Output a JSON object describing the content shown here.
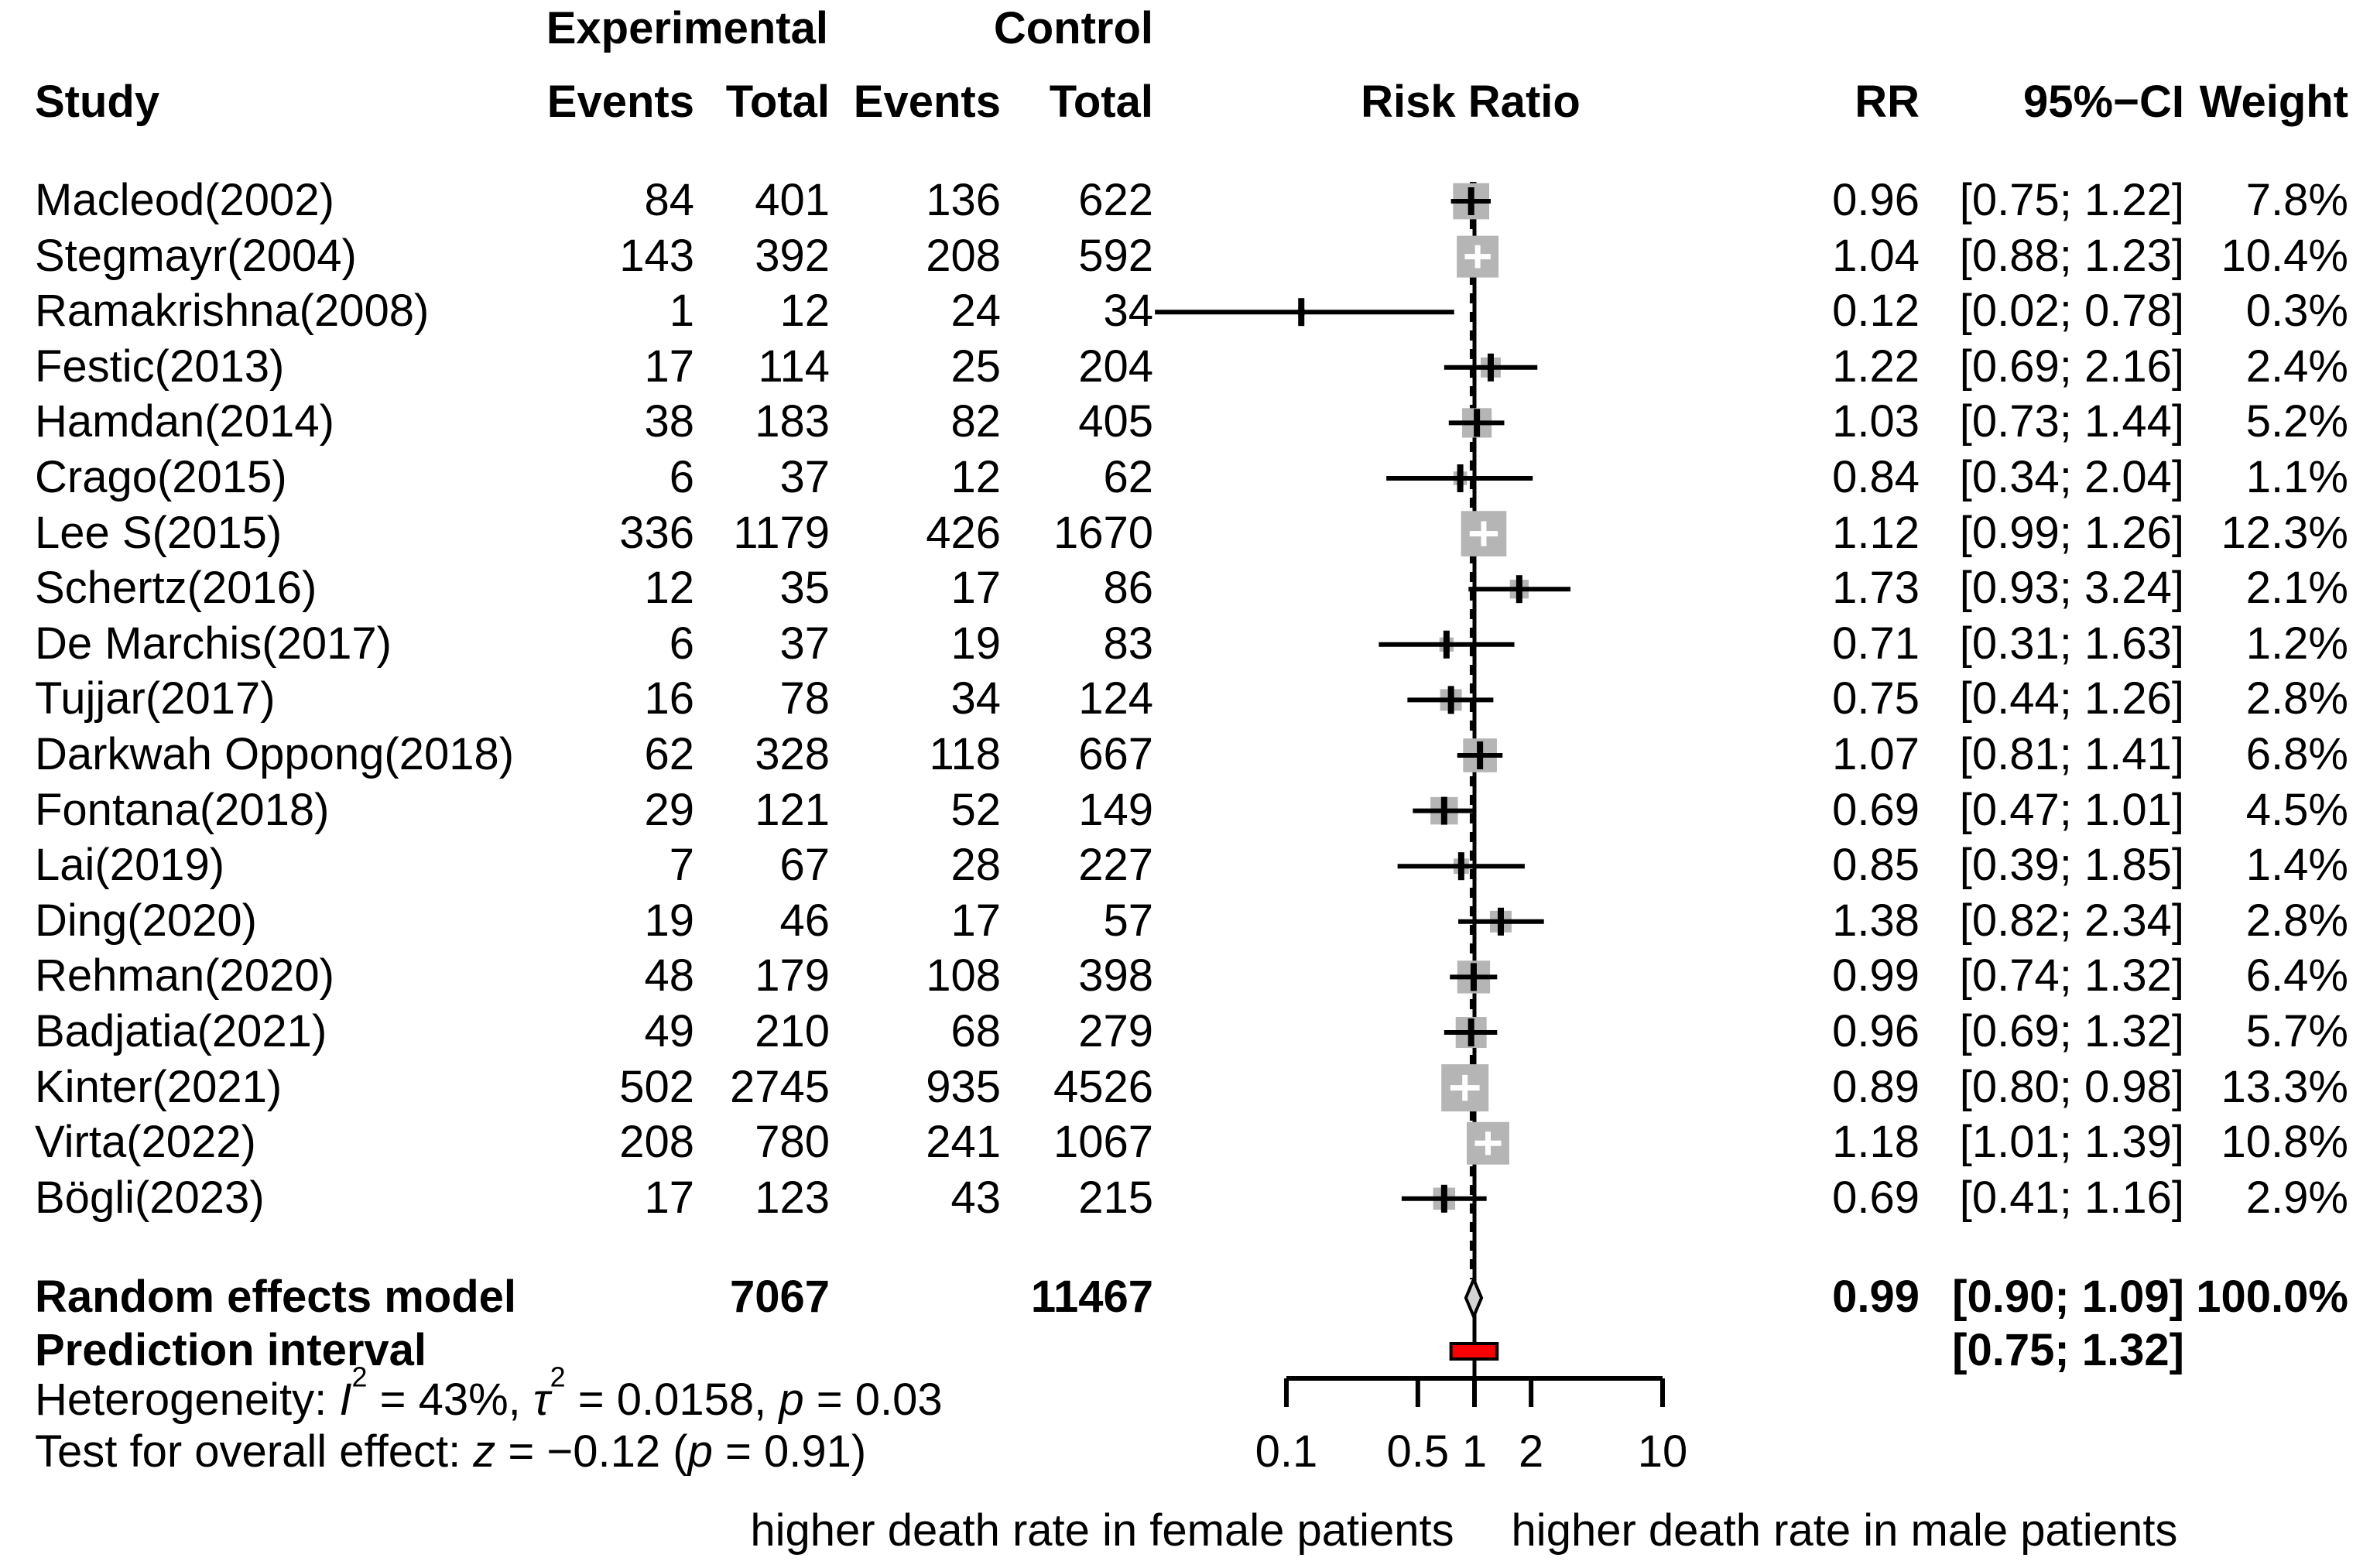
{
  "header": {
    "experimental": "Experimental",
    "control": "Control",
    "study": "Study",
    "events": "Events",
    "total": "Total",
    "events2": "Events",
    "total2": "Total",
    "risk_ratio": "Risk Ratio",
    "rr": "RR",
    "ci": "95%−CI",
    "weight": "Weight"
  },
  "summary": {
    "random_label": "Random effects model",
    "random_exp_total": "7067",
    "random_ctrl_total": "11467",
    "random_rr": "0.99",
    "random_ci": "[0.90; 1.09]",
    "random_weight": "100.0%",
    "prediction_label": "Prediction interval",
    "prediction_ci": "[0.75; 1.32]",
    "heterogeneity_segments": [
      {
        "t": "Heterogeneity: "
      },
      {
        "t": "I",
        "i": 1
      },
      {
        "t": "2",
        "sup": 1
      },
      {
        "t": " = 43%, "
      },
      {
        "t": "τ",
        "i": 1
      },
      {
        "t": "2",
        "sup": 1
      },
      {
        "t": " = 0.0158, "
      },
      {
        "t": "p",
        "i": 1
      },
      {
        "t": " = 0.03"
      }
    ],
    "test_segments": [
      {
        "t": "Test for overall effect: "
      },
      {
        "t": "z",
        "i": 1
      },
      {
        "t": " = −0.12 ("
      },
      {
        "t": "p",
        "i": 1
      },
      {
        "t": " = 0.91)"
      }
    ]
  },
  "chart_data": {
    "type": "scatter",
    "subtype": "forest-plot",
    "x_scale": "log10",
    "x_axis": {
      "ticks": [
        0.1,
        0.5,
        1,
        2,
        10
      ],
      "tick_labels": [
        "0.1",
        "0.5",
        "1",
        "2",
        "10"
      ],
      "reference_line": 1,
      "drawn_range": [
        0.1,
        10
      ]
    },
    "direction_label_left": "higher death rate in female patients",
    "direction_label_right": "higher death rate in male patients",
    "studies": [
      {
        "name": "Macleod(2002)",
        "exp_events": 84,
        "exp_total": 401,
        "ctrl_events": 136,
        "ctrl_total": 622,
        "rr": 0.96,
        "low": 0.75,
        "high": 1.22,
        "weight": 7.8,
        "weight_text": "7.8%"
      },
      {
        "name": "Stegmayr(2004)",
        "exp_events": 143,
        "exp_total": 392,
        "ctrl_events": 208,
        "ctrl_total": 592,
        "rr": 1.04,
        "low": 0.88,
        "high": 1.23,
        "weight": 10.4,
        "weight_text": "10.4%"
      },
      {
        "name": "Ramakrishna(2008)",
        "exp_events": 1,
        "exp_total": 12,
        "ctrl_events": 24,
        "ctrl_total": 34,
        "rr": 0.12,
        "low": 0.02,
        "high": 0.78,
        "weight": 0.3,
        "weight_text": "0.3%"
      },
      {
        "name": "Festic(2013)",
        "exp_events": 17,
        "exp_total": 114,
        "ctrl_events": 25,
        "ctrl_total": 204,
        "rr": 1.22,
        "low": 0.69,
        "high": 2.16,
        "weight": 2.4,
        "weight_text": "2.4%"
      },
      {
        "name": "Hamdan(2014)",
        "exp_events": 38,
        "exp_total": 183,
        "ctrl_events": 82,
        "ctrl_total": 405,
        "rr": 1.03,
        "low": 0.73,
        "high": 1.44,
        "weight": 5.2,
        "weight_text": "5.2%"
      },
      {
        "name": "Crago(2015)",
        "exp_events": 6,
        "exp_total": 37,
        "ctrl_events": 12,
        "ctrl_total": 62,
        "rr": 0.84,
        "low": 0.34,
        "high": 2.04,
        "weight": 1.1,
        "weight_text": "1.1%"
      },
      {
        "name": "Lee S(2015)",
        "exp_events": 336,
        "exp_total": 1179,
        "ctrl_events": 426,
        "ctrl_total": 1670,
        "rr": 1.12,
        "low": 0.99,
        "high": 1.26,
        "weight": 12.3,
        "weight_text": "12.3%"
      },
      {
        "name": "Schertz(2016)",
        "exp_events": 12,
        "exp_total": 35,
        "ctrl_events": 17,
        "ctrl_total": 86,
        "rr": 1.73,
        "low": 0.93,
        "high": 3.24,
        "weight": 2.1,
        "weight_text": "2.1%"
      },
      {
        "name": "De Marchis(2017)",
        "exp_events": 6,
        "exp_total": 37,
        "ctrl_events": 19,
        "ctrl_total": 83,
        "rr": 0.71,
        "low": 0.31,
        "high": 1.63,
        "weight": 1.2,
        "weight_text": "1.2%"
      },
      {
        "name": "Tujjar(2017)",
        "exp_events": 16,
        "exp_total": 78,
        "ctrl_events": 34,
        "ctrl_total": 124,
        "rr": 0.75,
        "low": 0.44,
        "high": 1.26,
        "weight": 2.8,
        "weight_text": "2.8%"
      },
      {
        "name": "Darkwah Oppong(2018)",
        "exp_events": 62,
        "exp_total": 328,
        "ctrl_events": 118,
        "ctrl_total": 667,
        "rr": 1.07,
        "low": 0.81,
        "high": 1.41,
        "weight": 6.8,
        "weight_text": "6.8%"
      },
      {
        "name": "Fontana(2018)",
        "exp_events": 29,
        "exp_total": 121,
        "ctrl_events": 52,
        "ctrl_total": 149,
        "rr": 0.69,
        "low": 0.47,
        "high": 1.01,
        "weight": 4.5,
        "weight_text": "4.5%"
      },
      {
        "name": "Lai(2019)",
        "exp_events": 7,
        "exp_total": 67,
        "ctrl_events": 28,
        "ctrl_total": 227,
        "rr": 0.85,
        "low": 0.39,
        "high": 1.85,
        "weight": 1.4,
        "weight_text": "1.4%"
      },
      {
        "name": "Ding(2020)",
        "exp_events": 19,
        "exp_total": 46,
        "ctrl_events": 17,
        "ctrl_total": 57,
        "rr": 1.38,
        "low": 0.82,
        "high": 2.34,
        "weight": 2.8,
        "weight_text": "2.8%"
      },
      {
        "name": "Rehman(2020)",
        "exp_events": 48,
        "exp_total": 179,
        "ctrl_events": 108,
        "ctrl_total": 398,
        "rr": 0.99,
        "low": 0.74,
        "high": 1.32,
        "weight": 6.4,
        "weight_text": "6.4%"
      },
      {
        "name": "Badjatia(2021)",
        "exp_events": 49,
        "exp_total": 210,
        "ctrl_events": 68,
        "ctrl_total": 279,
        "rr": 0.96,
        "low": 0.69,
        "high": 1.32,
        "weight": 5.7,
        "weight_text": "5.7%"
      },
      {
        "name": "Kinter(2021)",
        "exp_events": 502,
        "exp_total": 2745,
        "ctrl_events": 935,
        "ctrl_total": 4526,
        "rr": 0.89,
        "low": 0.8,
        "high": 0.98,
        "weight": 13.3,
        "weight_text": "13.3%"
      },
      {
        "name": "Virta(2022)",
        "exp_events": 208,
        "exp_total": 780,
        "ctrl_events": 241,
        "ctrl_total": 1067,
        "rr": 1.18,
        "low": 1.01,
        "high": 1.39,
        "weight": 10.8,
        "weight_text": "10.8%"
      },
      {
        "name": "Bögli(2023)",
        "exp_events": 17,
        "exp_total": 123,
        "ctrl_events": 43,
        "ctrl_total": 215,
        "rr": 0.69,
        "low": 0.41,
        "high": 1.16,
        "weight": 2.9,
        "weight_text": "2.9%"
      }
    ],
    "overall": {
      "rr": 0.99,
      "low": 0.9,
      "high": 1.09,
      "weight_text": "100.0%"
    },
    "prediction_interval": {
      "low": 0.75,
      "high": 1.32
    },
    "colors": {
      "square": "#b5b5b5",
      "diamond_fill": "#d3d3d3",
      "prediction_fill": "#fa0000",
      "line": "#000000",
      "text": "#000000"
    }
  }
}
